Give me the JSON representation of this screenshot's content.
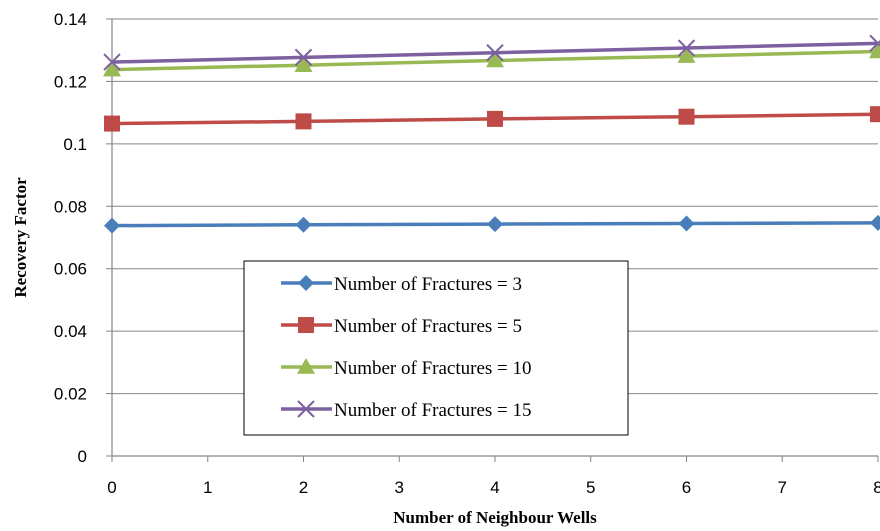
{
  "chart_data": {
    "type": "line",
    "title": "",
    "xlabel": "Number of Neighbour Wells",
    "ylabel": "Recovery Factor",
    "xlim": [
      0,
      8
    ],
    "ylim": [
      0,
      0.14
    ],
    "xticks": [
      "0",
      "1",
      "2",
      "3",
      "4",
      "5",
      "6",
      "7",
      "8"
    ],
    "yticks": [
      "0",
      "0.02",
      "0.04",
      "0.06",
      "0.08",
      "0.1",
      "0.12",
      "0.14"
    ],
    "grid": "horizontal",
    "legend_position": "lower-left inside",
    "series": [
      {
        "name": "Number of Fractures = 3",
        "color": "#4A7EBB",
        "marker": "diamond",
        "x": [
          0,
          2,
          4,
          6,
          8
        ],
        "y": [
          0.0738,
          0.0741,
          0.0743,
          0.0745,
          0.0747
        ]
      },
      {
        "name": "Number of Fractures = 5",
        "color": "#BE4B48",
        "marker": "square",
        "x": [
          0,
          2,
          4,
          6,
          8
        ],
        "y": [
          0.1065,
          0.1072,
          0.108,
          0.1087,
          0.1095
        ]
      },
      {
        "name": "Number of Fractures = 10",
        "color": "#98B954",
        "marker": "triangle",
        "x": [
          0,
          2,
          4,
          6,
          8
        ],
        "y": [
          0.1238,
          0.1252,
          0.1267,
          0.1281,
          0.1296
        ]
      },
      {
        "name": "Number of Fractures = 15",
        "color": "#7D60A0",
        "marker": "x",
        "x": [
          0,
          2,
          4,
          6,
          8
        ],
        "y": [
          0.1262,
          0.1277,
          0.1292,
          0.1307,
          0.1322
        ]
      }
    ]
  }
}
